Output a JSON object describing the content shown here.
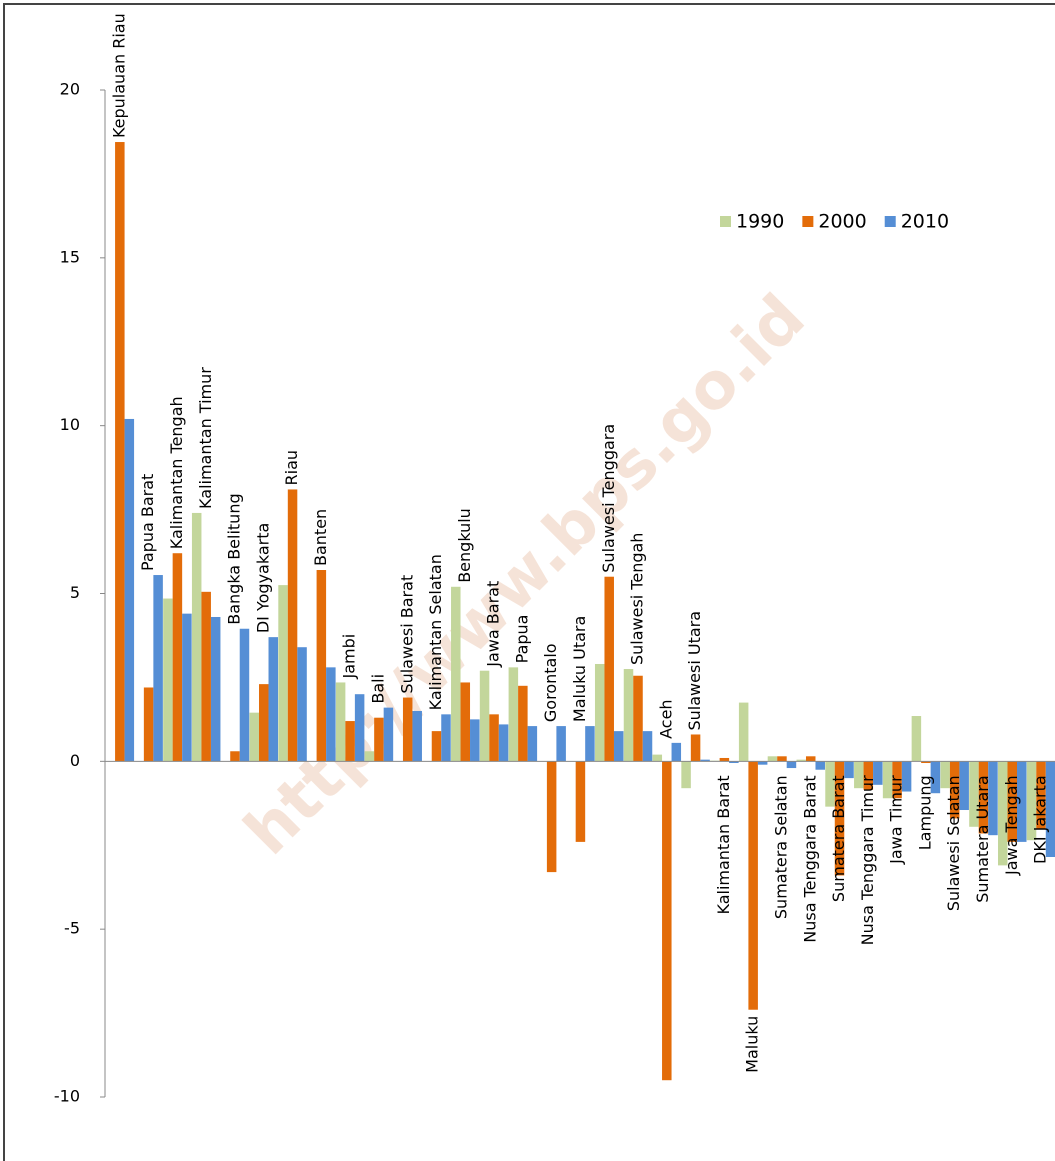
{
  "chart_data": {
    "type": "bar",
    "watermark": "http://www.bps.go.id",
    "categories": [
      "Kepulauan Riau",
      "Papua Barat",
      "Kalimantan Tengah",
      "Kalimantan Timur",
      "Bangka Belitung",
      "DI Yogyakarta",
      "Riau",
      "Banten",
      "Jambi",
      "Bali",
      "Sulawesi Barat",
      "Kalimantan Selatan",
      "Bengkulu",
      "Jawa Barat",
      "Papua",
      "Gorontalo",
      "Maluku Utara",
      "Sulawesi Tenggara",
      "Sulawesi Tengah",
      "Aceh",
      "Sulawesi Utara",
      "Kalimantan Barat",
      "Maluku",
      "Sumatera Selatan",
      "Nusa Tenggara Barat",
      "Sumatera Barat",
      "Nusa Tenggara Timur",
      "Jawa Timur",
      "Lampung",
      "Sulawesi Selatan",
      "Sumatera Utara",
      "Jawa Tengah",
      "DKI Jakarta"
    ],
    "series": [
      {
        "name": "1990",
        "color": "#c3d69b",
        "values": [
          null,
          null,
          4.85,
          7.4,
          null,
          1.45,
          5.25,
          null,
          2.35,
          0.3,
          null,
          null,
          5.2,
          2.7,
          2.8,
          null,
          null,
          2.9,
          2.75,
          0.2,
          -0.8,
          0.02,
          1.75,
          0.15,
          0.05,
          -1.35,
          -0.8,
          -1.1,
          1.35,
          -0.8,
          -1.95,
          -3.1,
          -2.35
        ]
      },
      {
        "name": "2000",
        "color": "#e36c09",
        "values": [
          18.45,
          2.2,
          6.2,
          5.05,
          0.3,
          2.3,
          8.1,
          5.7,
          1.2,
          1.3,
          1.9,
          0.9,
          2.35,
          1.4,
          2.25,
          -3.3,
          -2.4,
          5.5,
          2.55,
          -9.5,
          0.8,
          0.1,
          -7.4,
          0.15,
          0.15,
          -3.4,
          -0.85,
          -1.1,
          -0.05,
          -1.7,
          -2.15,
          -2.4,
          -2.0
        ]
      },
      {
        "name": "2010",
        "color": "#558ed5",
        "values": [
          10.2,
          5.55,
          4.4,
          4.3,
          3.95,
          3.7,
          3.4,
          2.8,
          2.0,
          1.6,
          1.5,
          1.4,
          1.25,
          1.1,
          1.05,
          1.05,
          1.05,
          0.9,
          0.9,
          0.55,
          0.05,
          -0.05,
          -0.1,
          -0.2,
          -0.25,
          -0.5,
          -0.7,
          -0.9,
          -0.95,
          -1.45,
          -2.2,
          -2.4,
          -2.85
        ]
      }
    ],
    "ylim": [
      -10,
      20
    ],
    "yticks": [
      -10,
      -5,
      0,
      5,
      10,
      15,
      20
    ],
    "legend": "top-right"
  }
}
